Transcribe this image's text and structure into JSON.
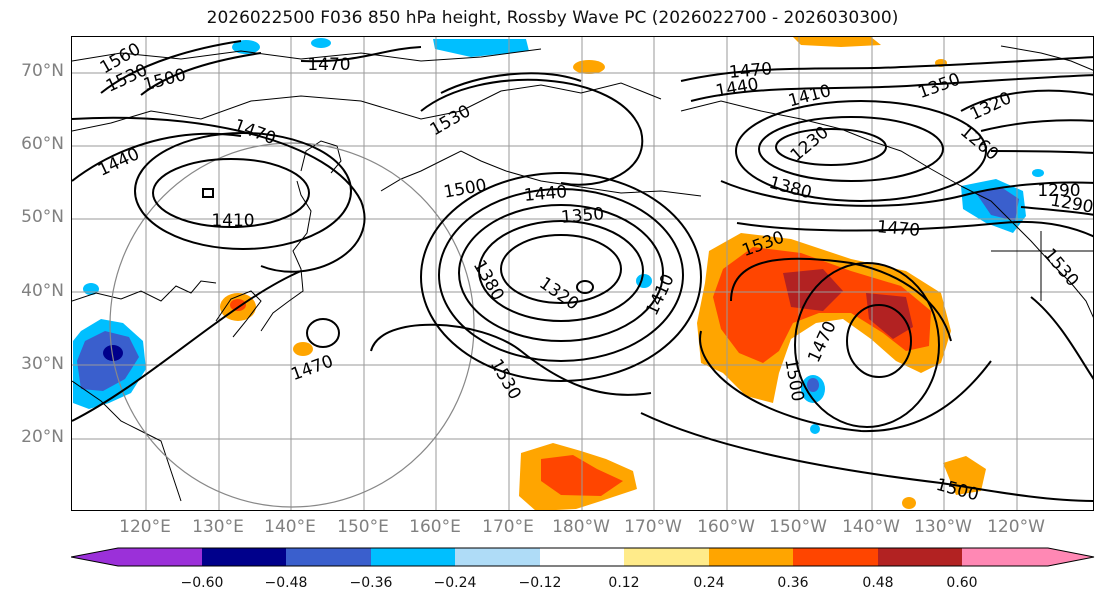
{
  "title": "2026022500 F036 850 hPa height, Rossby Wave PC (2026022700 - 2026030300)",
  "lat_labels": [
    "70°N",
    "60°N",
    "50°N",
    "40°N",
    "30°N",
    "20°N"
  ],
  "lon_labels": [
    "120°E",
    "130°E",
    "140°E",
    "150°E",
    "160°E",
    "170°E",
    "180°W",
    "170°W",
    "160°W",
    "150°W",
    "140°W",
    "130°W",
    "120°W"
  ],
  "contour_labels": [
    "1560",
    "1530",
    "1500",
    "1470",
    "1470",
    "1440",
    "1410",
    "1530",
    "1500",
    "1440",
    "1350",
    "1380",
    "1320",
    "1410",
    "1470",
    "1470",
    "1440",
    "1410",
    "1350",
    "1320",
    "1260",
    "1290",
    "1380",
    "1470",
    "1530",
    "1530",
    "1470",
    "1500",
    "1500",
    "1290",
    "1230",
    "1530"
  ],
  "colorbar": {
    "ticks": [
      "−0.60",
      "−0.48",
      "−0.36",
      "−0.24",
      "−0.12",
      "0.12",
      "0.24",
      "0.36",
      "0.48",
      "0.60"
    ],
    "colors": [
      "#9b30d9",
      "#00008b",
      "#3a5fcd",
      "#00bfff",
      "#afdcf7",
      "#ffffff",
      "#ffeb8a",
      "#ffa500",
      "#ff4500",
      "#b22222",
      "#ff88b4"
    ]
  }
}
